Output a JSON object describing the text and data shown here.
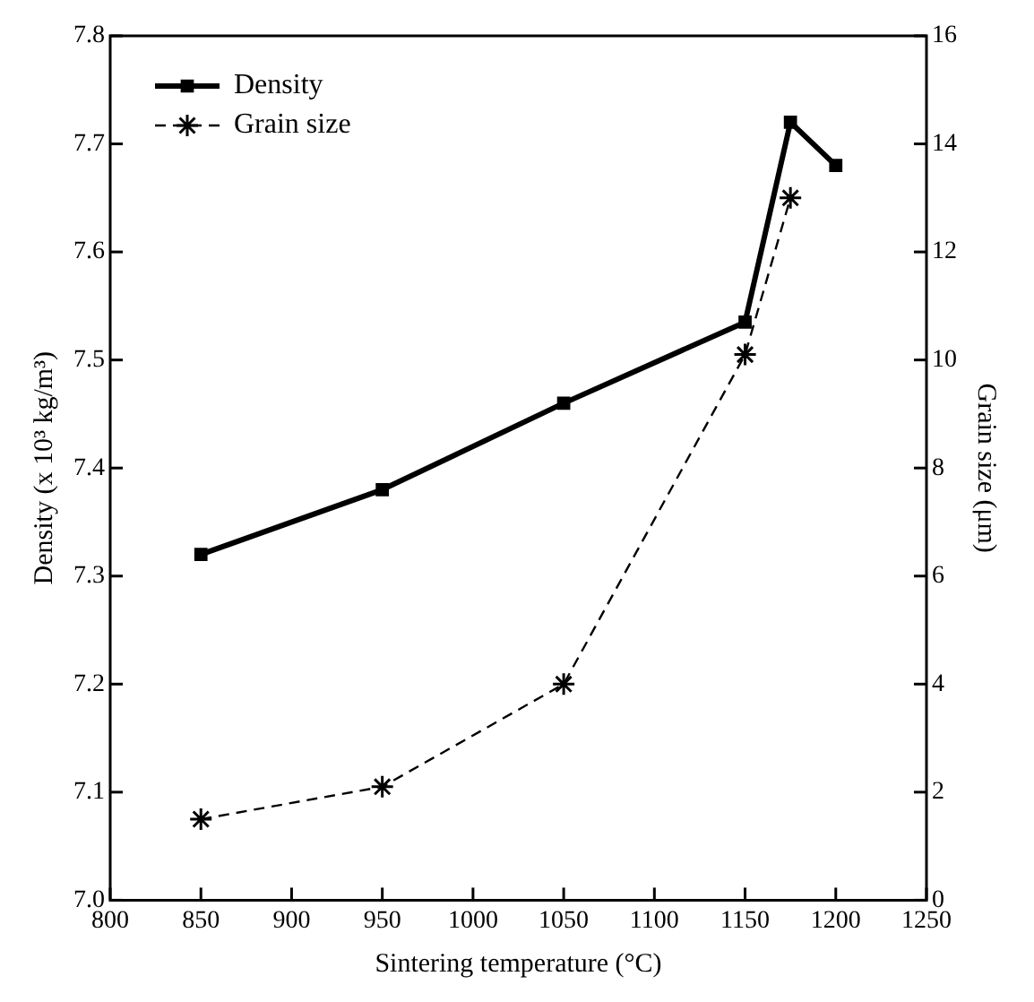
{
  "chart_data": {
    "type": "line",
    "xlabel": "Sintering temperature (°C)",
    "ylabel": "Density (x 10³ kg/m³)",
    "y2label": "Grain size (μm)",
    "x": [
      850,
      950,
      1050,
      1150,
      1175,
      1200
    ],
    "series": [
      {
        "name": "Density",
        "color": "#000000",
        "marker": "square",
        "line_style": "solid",
        "values": [
          7.32,
          7.38,
          7.46,
          7.535,
          7.72,
          7.68
        ]
      },
      {
        "name": "Grain size",
        "color": "#000000",
        "marker": "cross",
        "line_style": "dashed",
        "axis": "y2",
        "x": [
          850,
          950,
          1050,
          1150,
          1175
        ],
        "values": [
          1.5,
          2.1,
          4.0,
          10.1,
          13.0
        ]
      }
    ],
    "xlim": [
      800,
      1250
    ],
    "xticks": [
      800,
      850,
      900,
      950,
      1000,
      1050,
      1100,
      1150,
      1200,
      1250
    ],
    "ylim": [
      7.0,
      7.8
    ],
    "yticks": [
      {
        "value": 7.0,
        "label": "7.0"
      },
      7.1,
      7.2,
      7.3,
      7.4,
      7.5,
      7.6,
      7.7,
      7.8
    ],
    "y2lim": [
      0,
      16
    ],
    "y2ticks": [
      0,
      2,
      4,
      6,
      8,
      10,
      12,
      14,
      16
    ],
    "grid": false,
    "legend": "top left"
  }
}
